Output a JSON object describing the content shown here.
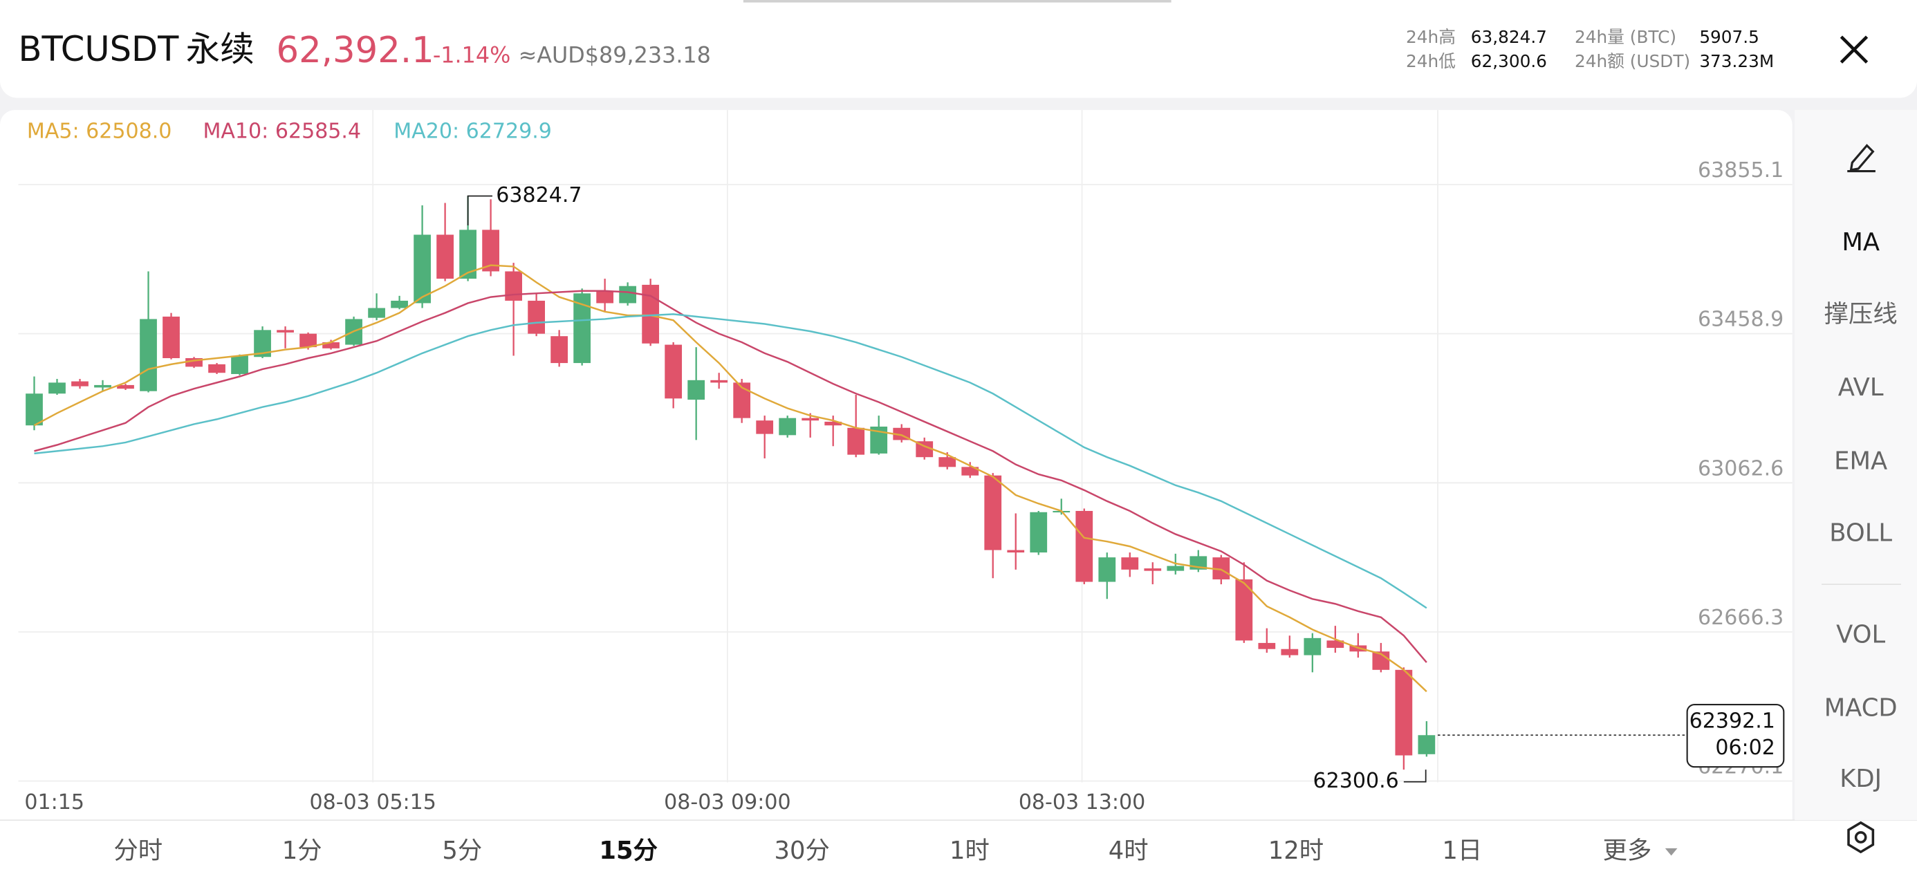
{
  "header": {
    "symbol": "BTCUSDT",
    "contract": "永续",
    "price": "62,392.1",
    "change": "-1.14%",
    "converted": "≈AUD$89,233.18",
    "stats": [
      {
        "label": "24h高",
        "value": "63,824.7"
      },
      {
        "label": "24h低",
        "value": "62,300.6"
      },
      {
        "label": "24h量 (BTC)",
        "value": "5907.5"
      },
      {
        "label": "24h额 (USDT)",
        "value": "373.23M"
      }
    ]
  },
  "chart_data": {
    "type": "candlestick",
    "up_color": "#4fb07a",
    "down_color": "#e0536a",
    "open": [
      63215.2,
      63299.7,
      63332.2,
      63315.9,
      63322.4,
      63306.2,
      63504.3,
      63393.9,
      63377.6,
      63351.7,
      63397.1,
      63468.6,
      63458.8,
      63436.1,
      63429.6,
      63501.1,
      63527.1,
      63540.0,
      63721.9,
      63605.0,
      63734.9,
      63624.5,
      63546.5,
      63452.3,
      63380.9,
      63572.5,
      63540.0,
      63588.8,
      63429.6,
      63283.5,
      63335.4,
      63328.9,
      63228.2,
      63189.3,
      63234.7,
      63225.0,
      63208.7,
      63140.5,
      63208.7,
      63173.0,
      63130.8,
      63104.8,
      63082.1,
      62883.9,
      62877.5,
      62984.6,
      62987.9,
      62799.5,
      62864.5,
      62835.2,
      62828.7,
      62832.0,
      62864.5,
      62806.0,
      62637.1,
      62620.9,
      62604.6,
      62643.6,
      62630.6,
      62614.4,
      62565.6,
      62341.5
    ],
    "high": [
      63345.2,
      63338.7,
      63338.7,
      63335.4,
      63325.7,
      63624.5,
      63514.1,
      63397.1,
      63380.9,
      63403.6,
      63478.3,
      63478.3,
      63462.1,
      63442.6,
      63504.3,
      63566.0,
      63559.5,
      63799.9,
      63806.4,
      63824.7,
      63816.1,
      63647.2,
      63566.0,
      63468.6,
      63579.0,
      63605.0,
      63595.3,
      63605.0,
      63436.1,
      63423.1,
      63354.9,
      63338.7,
      63241.2,
      63241.2,
      63247.7,
      63241.2,
      63296.4,
      63241.2,
      63218.5,
      63182.8,
      63143.8,
      63117.8,
      63088.6,
      62981.4,
      62987.9,
      63020.4,
      62994.4,
      62877.5,
      62877.5,
      62851.5,
      62874.2,
      62883.9,
      62871.0,
      62851.5,
      62676.1,
      62656.6,
      62663.1,
      62682.6,
      62663.1,
      62637.1,
      62572.1,
      62429.2
    ],
    "low": [
      63202.3,
      63296.4,
      63312.7,
      63306.2,
      63309.4,
      63302.9,
      63390.6,
      63367.9,
      63351.7,
      63348.4,
      63393.9,
      63419.9,
      63416.6,
      63416.6,
      63426.4,
      63494.6,
      63523.8,
      63527.1,
      63598.5,
      63598.5,
      63611.5,
      63400.4,
      63452.3,
      63371.1,
      63374.4,
      63517.3,
      63533.5,
      63426.4,
      63260.7,
      63176.3,
      63312.7,
      63221.7,
      63127.5,
      63182.8,
      63182.8,
      63160.0,
      63130.8,
      63137.3,
      63169.8,
      63124.3,
      63098.3,
      63075.6,
      62809.2,
      62832.0,
      62871.0,
      62978.1,
      62793.0,
      62754.0,
      62812.5,
      62793.0,
      62819.0,
      62825.5,
      62793.0,
      62637.1,
      62611.1,
      62598.1,
      62559.1,
      62611.1,
      62598.1,
      62559.1,
      62300.6,
      62335.0
    ],
    "close": [
      63299.7,
      63328.9,
      63319.2,
      63322.4,
      63312.7,
      63497.8,
      63393.9,
      63371.1,
      63354.9,
      63400.4,
      63468.6,
      63462.1,
      63423.1,
      63419.9,
      63497.8,
      63527.1,
      63546.5,
      63721.9,
      63605.0,
      63734.9,
      63624.5,
      63546.5,
      63458.8,
      63380.9,
      63566.0,
      63540.0,
      63585.5,
      63432.9,
      63286.7,
      63335.4,
      63328.9,
      63234.7,
      63192.5,
      63234.7,
      63228.2,
      63215.2,
      63137.3,
      63212.0,
      63176.3,
      63130.8,
      63104.8,
      63082.1,
      62883.9,
      62877.5,
      62984.6,
      62987.9,
      62799.5,
      62864.5,
      62832.0,
      62828.7,
      62841.7,
      62867.7,
      62806.0,
      62643.6,
      62620.9,
      62604.6,
      62650.1,
      62624.1,
      62614.4,
      62565.6,
      62338.3,
      62392.1
    ],
    "series": [
      {
        "name": "MA5: 62508.0",
        "color": "#e0a93a",
        "values": [
          63215.2,
          63247.7,
          63277.0,
          63306.2,
          63328.9,
          63364.7,
          63377.6,
          63387.4,
          63393.9,
          63400.4,
          63406.9,
          63416.6,
          63423.1,
          63436.1,
          63465.3,
          63488.1,
          63514.1,
          63556.3,
          63585.5,
          63621.2,
          63640.7,
          63637.5,
          63595.3,
          63556.3,
          63536.8,
          63517.3,
          63507.6,
          63507.6,
          63494.6,
          63436.1,
          63380.9,
          63315.9,
          63286.7,
          63260.7,
          63241.2,
          63228.2,
          63208.7,
          63199.0,
          63189.3,
          63160.0,
          63137.3,
          63108.1,
          63078.8,
          63030.1,
          63007.4,
          62987.9,
          62916.4,
          62906.7,
          62893.7,
          62871.0,
          62848.2,
          62838.5,
          62832.0,
          62796.3,
          62734.5,
          62705.3,
          62672.8,
          62646.8,
          62624.1,
          62607.9,
          62565.6,
          62508.0
        ]
      },
      {
        "name": "MA10: 62585.4",
        "color": "#c9466a",
        "values": [
          63147.0,
          63163.3,
          63182.8,
          63202.3,
          63221.7,
          63264.0,
          63293.2,
          63312.7,
          63328.9,
          63345.2,
          63364.7,
          63377.6,
          63393.9,
          63406.9,
          63423.1,
          63439.4,
          63465.3,
          63491.3,
          63514.1,
          63540.0,
          63556.3,
          63562.8,
          63566.0,
          63569.3,
          63572.5,
          63572.5,
          63569.3,
          63559.5,
          63523.8,
          63488.1,
          63458.8,
          63436.1,
          63406.9,
          63384.1,
          63354.9,
          63325.7,
          63299.7,
          63277.0,
          63251.0,
          63225.0,
          63199.0,
          63173.0,
          63147.0,
          63111.3,
          63085.3,
          63069.1,
          63043.1,
          63013.9,
          62987.9,
          62955.4,
          62926.2,
          62903.4,
          62880.7,
          62845.0,
          62802.7,
          62776.8,
          62754.0,
          62741.0,
          62721.5,
          62705.3,
          62656.6,
          62585.4
        ]
      },
      {
        "name": "MA20: 62729.9",
        "color": "#5bc0c8",
        "values": [
          63140.5,
          63147.0,
          63153.5,
          63160.0,
          63169.8,
          63186.0,
          63202.3,
          63218.5,
          63231.5,
          63247.7,
          63264.0,
          63277.0,
          63293.2,
          63312.7,
          63332.2,
          63354.9,
          63380.9,
          63406.9,
          63429.6,
          63452.3,
          63468.6,
          63481.6,
          63488.1,
          63491.3,
          63494.6,
          63497.8,
          63504.3,
          63507.6,
          63510.8,
          63504.3,
          63497.8,
          63491.3,
          63484.8,
          63475.1,
          63465.3,
          63452.3,
          63436.1,
          63416.6,
          63397.1,
          63374.4,
          63351.7,
          63328.9,
          63299.7,
          63264.0,
          63228.2,
          63192.5,
          63156.8,
          63130.8,
          63108.1,
          63082.1,
          63056.1,
          63036.6,
          63013.9,
          62984.6,
          62955.4,
          62926.2,
          62896.9,
          62867.7,
          62838.5,
          62809.2,
          62770.3,
          62729.9
        ]
      }
    ],
    "ylim": [
      62266.8,
      64053.2
    ],
    "yticks": [
      63855.1,
      63458.9,
      63062.6,
      62666.3,
      62270.1
    ],
    "grid": true,
    "xlabels": [
      "01:15",
      "08-03 05:15",
      "08-03 09:00",
      "08-03 13:00"
    ],
    "high_label": 63824.7,
    "low_label": 62300.6,
    "last_price": 62392.1,
    "countdown": "06:02"
  },
  "toolbar": [
    "MA",
    "撑压线",
    "AVL",
    "EMA",
    "BOLL",
    "VOL",
    "MACD",
    "KDJ"
  ],
  "timeframes": [
    "分时",
    "1分",
    "5分",
    "15分",
    "30分",
    "1时",
    "4时",
    "12时",
    "1日",
    "更多"
  ],
  "selected_timeframe": 3
}
